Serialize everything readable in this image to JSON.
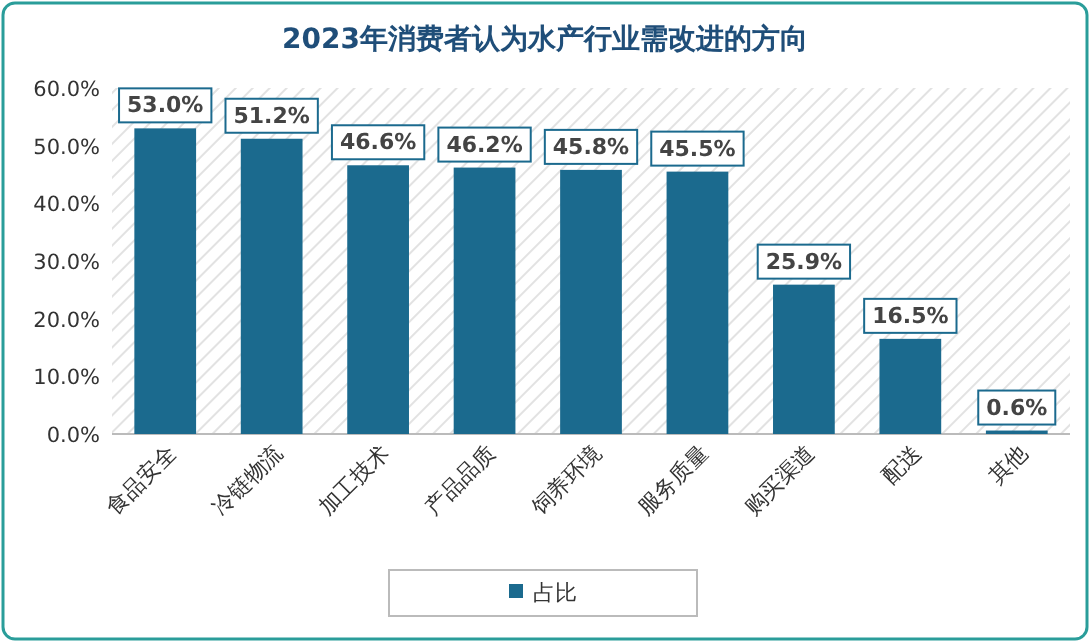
{
  "chart_data": {
    "type": "bar",
    "title": "2023年消费者认为水产行业需改进的方向",
    "categories": [
      "食品安全",
      "冷链物流",
      "加工技术",
      "产品品质",
      "饲养环境",
      "服务质量",
      "购买渠道",
      "配送",
      "其他"
    ],
    "series": [
      {
        "name": "占比",
        "color": "#1b6a8e",
        "values": [
          53.0,
          51.2,
          46.6,
          46.2,
          45.8,
          45.5,
          25.9,
          16.5,
          0.6
        ],
        "value_labels": [
          "53.0%",
          "51.2%",
          "46.6%",
          "46.2%",
          "45.8%",
          "45.5%",
          "25.9%",
          "16.5%",
          "0.6%"
        ]
      }
    ],
    "ylim": [
      0,
      60
    ],
    "yticks": [
      {
        "value": 0,
        "label": "0.0%"
      },
      {
        "value": 10,
        "label": "10.0%"
      },
      {
        "value": 20,
        "label": "20.0%"
      },
      {
        "value": 30,
        "label": "30.0%"
      },
      {
        "value": 40,
        "label": "40.0%"
      },
      {
        "value": 50,
        "label": "50.0%"
      },
      {
        "value": 60,
        "label": "60.0%"
      }
    ],
    "grid": false,
    "legend": "bottom"
  }
}
